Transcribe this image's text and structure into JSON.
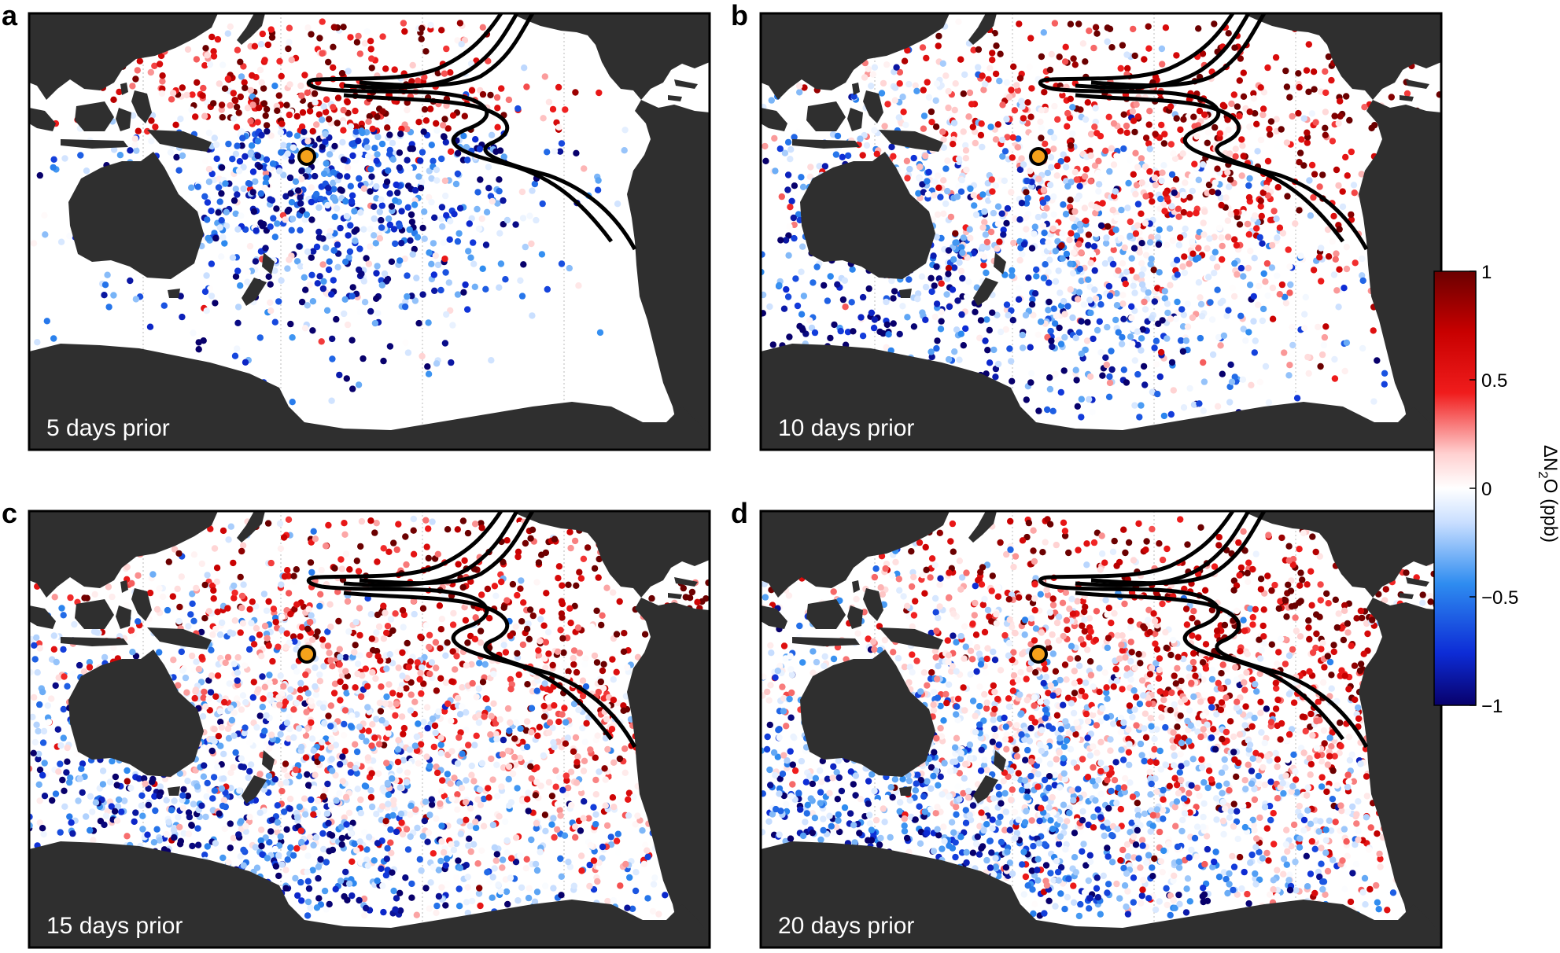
{
  "panels": [
    {
      "letter": "a",
      "label": "5 days prior",
      "key": "d5"
    },
    {
      "letter": "b",
      "label": "10 days prior",
      "key": "d10"
    },
    {
      "letter": "c",
      "label": "15 days prior",
      "key": "d15"
    },
    {
      "letter": "d",
      "label": "20 days prior",
      "key": "d20"
    }
  ],
  "colorbar": {
    "title_prefix": "ΔN",
    "title_subscript": "2",
    "title_suffix": "O (ppb)",
    "ticks": [
      "1",
      "0.5",
      "0",
      "−0.5",
      "−1"
    ],
    "min": -1,
    "max": 1,
    "colors": [
      "#08006b",
      "#0d2cd6",
      "#2e8cf0",
      "#c8deff",
      "#ffffff",
      "#ffd0d0",
      "#f01c1c",
      "#c80000",
      "#6b0000"
    ]
  },
  "colors": {
    "land": "#2f2f2f",
    "ocean": "#ffffff",
    "station_marker": "#f5a21b",
    "contour": "#000000",
    "gridline": "#bbbbbb"
  }
}
